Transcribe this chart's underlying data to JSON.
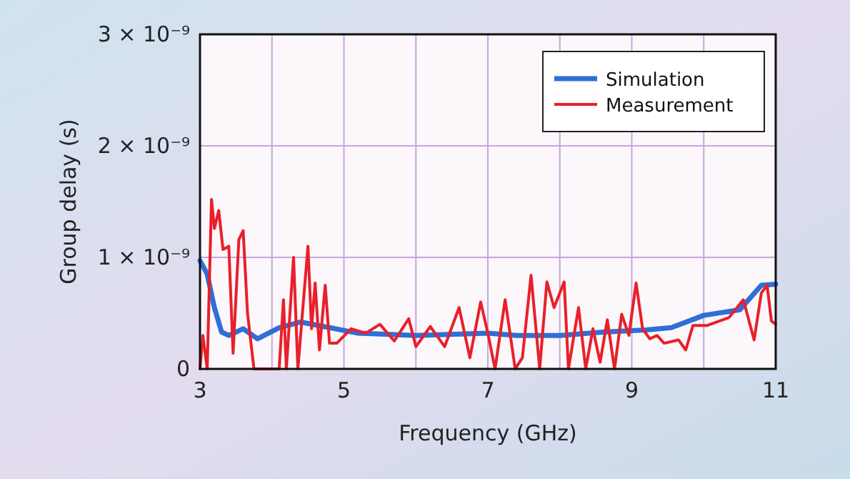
{
  "chart_data": {
    "type": "line",
    "xlabel": "Frequency (GHz)",
    "ylabel": "Group delay (s)",
    "xlim": [
      3,
      11
    ],
    "xticks": [
      3,
      5,
      7,
      9,
      11
    ],
    "ylim": [
      0,
      3e-09
    ],
    "yticks": [
      0,
      {
        "value": 1e-09,
        "label": "1 × 10⁻⁹"
      },
      {
        "value": 2e-09,
        "label": "2 × 10⁻⁹"
      },
      {
        "value": 3e-09,
        "label": "3 × 10⁻⁹"
      }
    ],
    "grid": true,
    "legend": "top right",
    "marker": "none",
    "line_style": "solid",
    "series": [
      {
        "name": "Simulation",
        "color": "#2f6fd6",
        "x": [
          3,
          3.1,
          3.2,
          3.3,
          3.4,
          3.6,
          3.8,
          4.1,
          4.4,
          4.8,
          5.2,
          6,
          7,
          7.4,
          8,
          8.6,
          9.2,
          9.55,
          10,
          10.5,
          10.8,
          11
        ],
        "values": [
          9.7e-10,
          8.5e-10,
          5.5e-10,
          3.3e-10,
          3e-10,
          3.6e-10,
          2.7e-10,
          3.7e-10,
          4.2e-10,
          3.7e-10,
          3.2e-10,
          3e-10,
          3.2e-10,
          3e-10,
          3e-10,
          3.3e-10,
          3.5e-10,
          3.7e-10,
          4.8e-10,
          5.3e-10,
          7.5e-10,
          7.6e-10
        ]
      },
      {
        "name": "Measurement",
        "color": "#e8202a",
        "x": [
          3,
          3.04,
          3.1,
          3.16,
          3.2,
          3.26,
          3.32,
          3.4,
          3.46,
          3.54,
          3.6,
          3.66,
          3.75,
          4.1,
          4.16,
          4.2,
          4.3,
          4.36,
          4.5,
          4.55,
          4.6,
          4.66,
          4.74,
          4.8,
          4.9,
          5.1,
          5.3,
          5.5,
          5.7,
          5.9,
          6,
          6.2,
          6.4,
          6.6,
          6.75,
          6.9,
          7,
          7.1,
          7.24,
          7.38,
          7.48,
          7.6,
          7.72,
          7.82,
          7.92,
          8.06,
          8.12,
          8.26,
          8.36,
          8.46,
          8.56,
          8.66,
          8.76,
          8.86,
          8.96,
          9.06,
          9.15,
          9.25,
          9.35,
          9.45,
          9.65,
          9.75,
          9.85,
          10.05,
          10.35,
          10.55,
          10.7,
          10.8,
          10.88,
          10.94,
          11
        ],
        "values": [
          0,
          3e-10,
          0,
          1.52e-09,
          1.26e-09,
          1.42e-09,
          1.07e-09,
          1.1e-09,
          1.4e-10,
          1.16e-09,
          1.24e-09,
          5e-10,
          0,
          0,
          6.2e-10,
          0,
          1e-09,
          0,
          1.1e-09,
          3.6e-10,
          7.7e-10,
          1.7e-10,
          7.5e-10,
          2.3e-10,
          2.3e-10,
          3.6e-10,
          3.2e-10,
          4e-10,
          2.5e-10,
          4.5e-10,
          2e-10,
          3.8e-10,
          2e-10,
          5.5e-10,
          1e-10,
          6e-10,
          3.2e-10,
          0,
          6.2e-10,
          0,
          1e-10,
          8.4e-10,
          0,
          7.8e-10,
          5.5e-10,
          7.8e-10,
          0,
          5.5e-10,
          0,
          3.6e-10,
          6e-11,
          4.4e-10,
          0,
          4.9e-10,
          3e-10,
          7.7e-10,
          3.6e-10,
          2.7e-10,
          3e-10,
          2.3e-10,
          2.6e-10,
          1.7e-10,
          3.9e-10,
          3.9e-10,
          4.6e-10,
          6.2e-10,
          2.6e-10,
          6.8e-10,
          7.5e-10,
          4.3e-10,
          4e-10
        ]
      }
    ]
  }
}
